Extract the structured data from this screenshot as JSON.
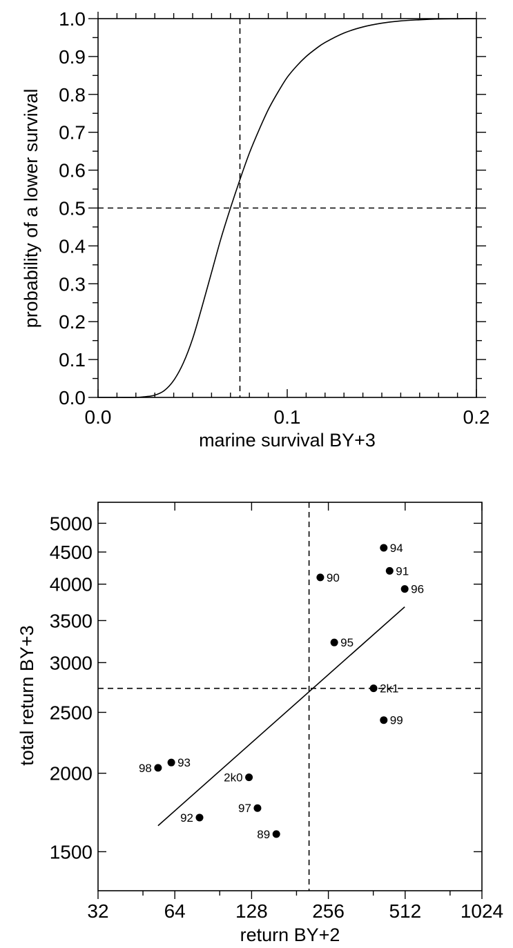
{
  "chart_data": [
    {
      "type": "line",
      "xlabel": "marine survival BY+3",
      "ylabel": "probability of a lower survival",
      "xlim": [
        0.0,
        0.2
      ],
      "ylim": [
        0.0,
        1.0
      ],
      "x_ticks": [
        "0.0",
        "0.1",
        "0.2"
      ],
      "y_ticks": [
        "0.0",
        "0.1",
        "0.2",
        "0.3",
        "0.4",
        "0.5",
        "0.6",
        "0.7",
        "0.8",
        "0.9",
        "1.0"
      ],
      "series": [
        {
          "x": [
            0.0,
            0.01,
            0.02,
            0.025,
            0.03,
            0.035,
            0.04,
            0.045,
            0.05,
            0.055,
            0.06,
            0.065,
            0.07,
            0.075,
            0.08,
            0.085,
            0.09,
            0.095,
            0.1,
            0.105,
            0.11,
            0.115,
            0.12,
            0.13,
            0.14,
            0.15,
            0.16,
            0.17,
            0.18,
            0.19,
            0.2
          ],
          "y": [
            0.0,
            0.0,
            0.0,
            0.002,
            0.006,
            0.018,
            0.045,
            0.09,
            0.155,
            0.24,
            0.33,
            0.42,
            0.5,
            0.575,
            0.645,
            0.705,
            0.76,
            0.805,
            0.845,
            0.875,
            0.9,
            0.92,
            0.937,
            0.962,
            0.978,
            0.988,
            0.994,
            0.997,
            0.999,
            0.9995,
            1.0
          ]
        }
      ],
      "reference_lines": {
        "x": 0.075,
        "y": 0.5,
        "style": "dashed"
      },
      "grid": false
    },
    {
      "type": "scatter",
      "xlabel": "return BY+2",
      "ylabel": "total return BY+3",
      "x_scale": "log2",
      "y_scale": "log",
      "xlim": [
        32,
        1024
      ],
      "ylim": [
        1300,
        5400
      ],
      "x_ticks": [
        "32",
        "64",
        "128",
        "256",
        "512",
        "1024"
      ],
      "y_ticks": [
        "1500",
        "2000",
        "2500",
        "3000",
        "3500",
        "4000",
        "4500",
        "5000"
      ],
      "points": [
        {
          "label": "89",
          "x": 160,
          "y": 1600
        },
        {
          "label": "90",
          "x": 238,
          "y": 4100
        },
        {
          "label": "91",
          "x": 445,
          "y": 4200
        },
        {
          "label": "92",
          "x": 80,
          "y": 1700
        },
        {
          "label": "93",
          "x": 62,
          "y": 2080
        },
        {
          "label": "94",
          "x": 422,
          "y": 4570
        },
        {
          "label": "95",
          "x": 270,
          "y": 3230
        },
        {
          "label": "96",
          "x": 510,
          "y": 3930
        },
        {
          "label": "97",
          "x": 135,
          "y": 1760
        },
        {
          "label": "98",
          "x": 55,
          "y": 2040
        },
        {
          "label": "99",
          "x": 422,
          "y": 2430
        },
        {
          "label": "2k0",
          "x": 125,
          "y": 1970
        },
        {
          "label": "2k1",
          "x": 385,
          "y": 2730
        }
      ],
      "fit_line": {
        "x": [
          55,
          510
        ],
        "y": [
          1650,
          3680
        ]
      },
      "reference_lines": {
        "x": 215,
        "y": 2730,
        "style": "dashed"
      },
      "grid": false
    }
  ]
}
